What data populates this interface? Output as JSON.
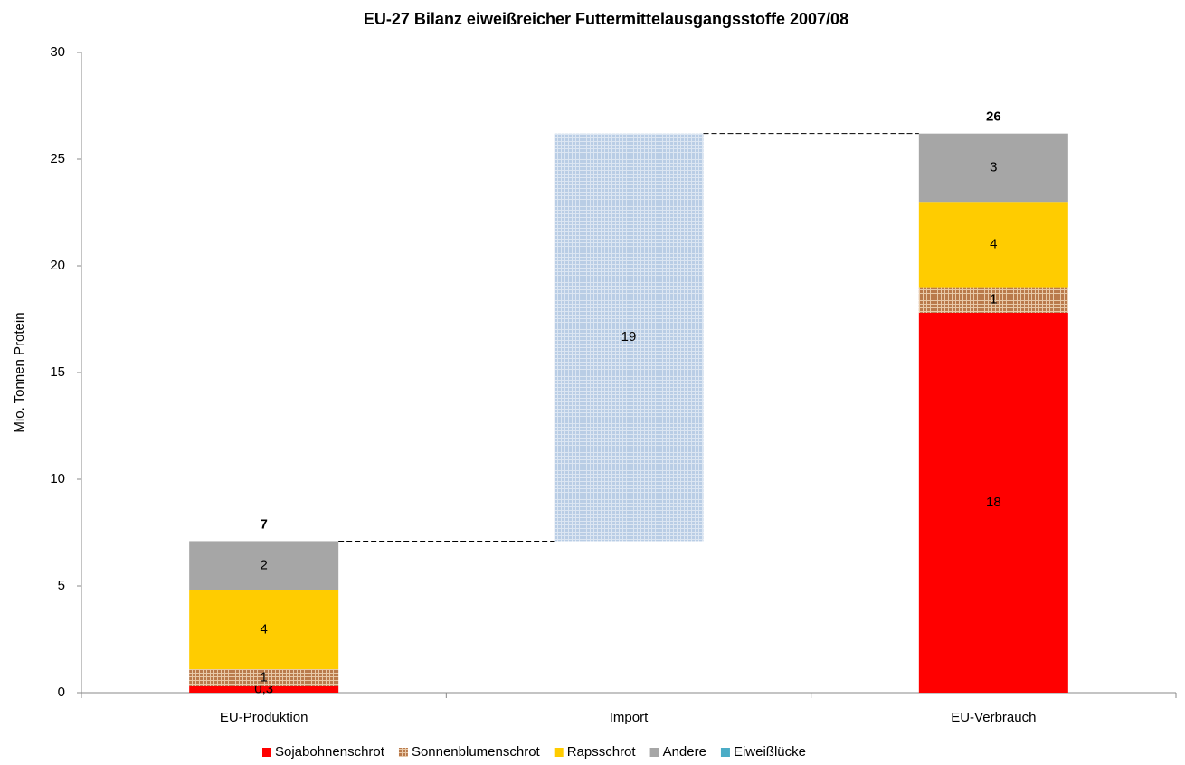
{
  "chart_data": {
    "type": "waterfall",
    "title": "EU-27 Bilanz eiweißreicher Futtermittelausgangsstoffe 2007/08",
    "y_label": "Mio. Tonnen Protein",
    "categories": [
      "EU-Produktion",
      "Import",
      "EU-Verbrauch"
    ],
    "series": [
      {
        "name": "Sojabohnenschrot",
        "color": "#ff0000",
        "values": [
          0.3,
          null,
          17.8
        ],
        "value_labels": [
          "0,3",
          null,
          "18"
        ]
      },
      {
        "name": "Sonnenblumenschrot",
        "color": "#b97a4c",
        "pattern": "grid",
        "values": [
          0.8,
          null,
          1.2
        ],
        "value_labels": [
          "1",
          null,
          "1"
        ]
      },
      {
        "name": "Rapsschrot",
        "color": "#ffcc00",
        "values": [
          3.7,
          null,
          4.0
        ],
        "value_labels": [
          "4",
          null,
          "4"
        ]
      },
      {
        "name": "Andere",
        "color": "#a6a6a6",
        "values": [
          2.3,
          null,
          3.2
        ],
        "value_labels": [
          "2",
          null,
          "3"
        ]
      },
      {
        "name": "Eiweißlücke",
        "color": "#4bacc6",
        "bar_color": "#b9cde5",
        "pattern": "grid",
        "floating": true,
        "values": [
          null,
          19.1,
          null
        ],
        "value_labels": [
          null,
          "19",
          null
        ]
      }
    ],
    "total_labels": [
      "7",
      null,
      "26"
    ],
    "ylim": [
      0,
      30
    ],
    "yticks": [
      0,
      5,
      10,
      15,
      20,
      25,
      30
    ]
  }
}
